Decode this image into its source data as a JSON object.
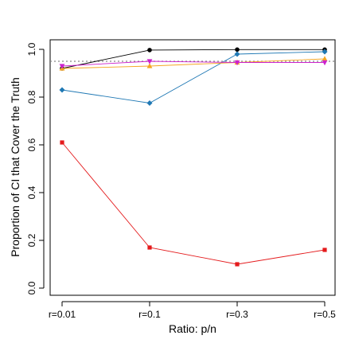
{
  "chart_data": {
    "type": "line",
    "title": "",
    "xlabel": "Ratio: p/n",
    "ylabel": "Proportion of CI that Cover the Truth",
    "categories": [
      "r=0.01",
      "r=0.1",
      "r=0.3",
      "r=0.5"
    ],
    "ylim": [
      -0.03,
      1.04
    ],
    "yticks": [
      "0.0",
      "0.2",
      "0.4",
      "0.6",
      "0.8",
      "1.0"
    ],
    "grid": false,
    "reference_line": {
      "y": 0.95,
      "style": "dotted",
      "color": "#888888"
    },
    "series": [
      {
        "values": [
          0.92,
          0.997,
          0.999,
          0.999
        ],
        "color": "#000000",
        "marker": "circle"
      },
      {
        "values": [
          0.61,
          0.17,
          0.1,
          0.16
        ],
        "color": "#e41a1c",
        "marker": "square"
      },
      {
        "values": [
          0.83,
          0.775,
          0.98,
          0.99
        ],
        "color": "#1f78b4",
        "marker": "diamond"
      },
      {
        "values": [
          0.92,
          0.93,
          0.945,
          0.96
        ],
        "color": "#f5a623",
        "marker": "triangle-up"
      },
      {
        "values": [
          0.93,
          0.95,
          0.945,
          0.945
        ],
        "color": "#cc22cc",
        "marker": "triangle-down"
      }
    ]
  }
}
